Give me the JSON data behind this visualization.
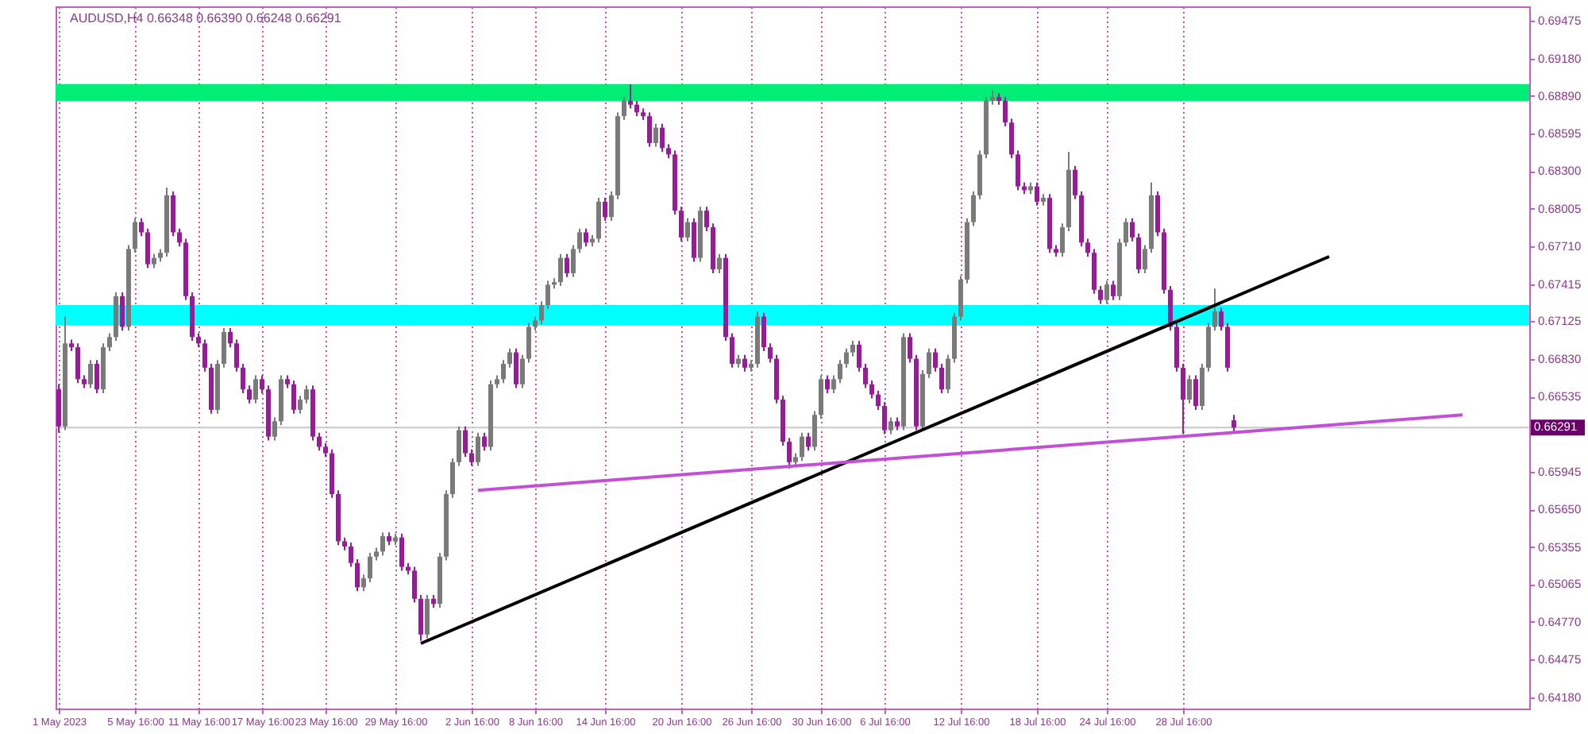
{
  "chart_data": {
    "type": "candlestick",
    "title": "AUDUSD,H4  0.66348 0.66390 0.66248 0.66291",
    "categories": [
      "1 May 2023",
      null,
      null,
      null,
      null,
      null,
      null,
      null,
      null,
      null,
      null,
      null,
      "5 May 16:00",
      null,
      null,
      null,
      null,
      null,
      null,
      null,
      null,
      null,
      "11 May 16:00",
      null,
      null,
      null,
      null,
      null,
      null,
      null,
      null,
      null,
      "17 May 16:00",
      null,
      null,
      null,
      null,
      null,
      null,
      null,
      null,
      null,
      "23 May 16:00",
      null,
      null,
      null,
      null,
      null,
      null,
      null,
      null,
      null,
      null,
      "29 May 16:00",
      null,
      null,
      null,
      null,
      null,
      null,
      null,
      null,
      null,
      null,
      null,
      "2 Jun 16:00",
      null,
      null,
      null,
      null,
      null,
      null,
      null,
      null,
      null,
      "8 Jun 16:00",
      null,
      null,
      null,
      null,
      null,
      null,
      null,
      null,
      null,
      null,
      "14 Jun 16:00",
      null,
      null,
      null,
      null,
      null,
      null,
      null,
      null,
      null,
      null,
      null,
      "20 Jun 16:00",
      null,
      null,
      null,
      null,
      null,
      null,
      null,
      null,
      null,
      null,
      "26 Jun 16:00",
      null,
      null,
      null,
      null,
      null,
      null,
      null,
      null,
      null,
      null,
      "30 Jun 16:00",
      null,
      null,
      null,
      null,
      null,
      null,
      null,
      null,
      null,
      "6 Jul 16:00",
      null,
      null,
      null,
      null,
      null,
      null,
      null,
      null,
      null,
      null,
      null,
      "12 Jul 16:00",
      null,
      null,
      null,
      null,
      null,
      null,
      null,
      null,
      null,
      null,
      null,
      "18 Jul 16:00",
      null,
      null,
      null,
      null,
      null,
      null,
      null,
      null,
      null,
      null,
      "24 Jul 16:00",
      null,
      null,
      null,
      null,
      null,
      null,
      null,
      null,
      null,
      null,
      null,
      "28 Jul 16:00",
      null,
      null,
      null,
      null,
      null,
      null,
      null,
      null,
      null,
      null,
      null,
      null,
      null,
      null,
      null,
      null,
      null,
      null,
      null,
      null,
      null,
      null,
      null,
      null,
      null,
      null,
      null,
      null,
      null,
      null,
      null,
      null,
      null,
      null,
      null,
      null,
      null,
      null,
      null,
      null,
      null,
      null,
      null,
      null,
      null,
      null,
      null,
      null,
      null,
      null,
      null,
      null,
      null,
      null
    ],
    "ohlc": [
      [
        0.6659,
        0.6663,
        0.6625,
        0.663
      ],
      [
        0.663,
        0.6716,
        0.6627,
        0.6695
      ],
      [
        0.6695,
        0.6698,
        0.6689,
        0.6692
      ],
      [
        0.6692,
        0.6695,
        0.6664,
        0.6667
      ],
      [
        0.6667,
        0.667,
        0.666,
        0.6663
      ],
      [
        0.6663,
        0.6682,
        0.666,
        0.6679
      ],
      [
        0.6679,
        0.6682,
        0.6656,
        0.6659
      ],
      [
        0.6659,
        0.6695,
        0.6656,
        0.6692
      ],
      [
        0.6692,
        0.6703,
        0.6689,
        0.67
      ],
      [
        0.67,
        0.6735,
        0.6697,
        0.6732
      ],
      [
        0.6732,
        0.6735,
        0.6705,
        0.6708
      ],
      [
        0.6708,
        0.6772,
        0.6705,
        0.6769
      ],
      [
        0.6769,
        0.6793,
        0.6766,
        0.679
      ],
      [
        0.679,
        0.6793,
        0.6779,
        0.6782
      ],
      [
        0.6782,
        0.6785,
        0.6754,
        0.6757
      ],
      [
        0.6757,
        0.6765,
        0.6754,
        0.6762
      ],
      [
        0.6762,
        0.6769,
        0.6759,
        0.6766
      ],
      [
        0.6766,
        0.6817,
        0.6763,
        0.6811
      ],
      [
        0.6811,
        0.6814,
        0.6779,
        0.6782
      ],
      [
        0.6782,
        0.6785,
        0.6771,
        0.6774
      ],
      [
        0.6774,
        0.6777,
        0.6729,
        0.6732
      ],
      [
        0.6732,
        0.6735,
        0.6697,
        0.67
      ],
      [
        0.67,
        0.6703,
        0.6692,
        0.6695
      ],
      [
        0.6695,
        0.6698,
        0.6673,
        0.6676
      ],
      [
        0.6676,
        0.6679,
        0.664,
        0.6643
      ],
      [
        0.6643,
        0.6682,
        0.664,
        0.6679
      ],
      [
        0.6679,
        0.6707,
        0.6676,
        0.6704
      ],
      [
        0.6704,
        0.6707,
        0.6692,
        0.6695
      ],
      [
        0.6695,
        0.6698,
        0.6673,
        0.6676
      ],
      [
        0.6676,
        0.6679,
        0.6656,
        0.6659
      ],
      [
        0.6659,
        0.6662,
        0.6648,
        0.6651
      ],
      [
        0.6651,
        0.667,
        0.6648,
        0.6667
      ],
      [
        0.6667,
        0.667,
        0.6656,
        0.6659
      ],
      [
        0.6659,
        0.6662,
        0.6619,
        0.6622
      ],
      [
        0.6622,
        0.6637,
        0.6619,
        0.6634
      ],
      [
        0.6634,
        0.667,
        0.6631,
        0.6667
      ],
      [
        0.6667,
        0.667,
        0.666,
        0.6663
      ],
      [
        0.6663,
        0.6666,
        0.664,
        0.6643
      ],
      [
        0.6643,
        0.6654,
        0.664,
        0.6651
      ],
      [
        0.6651,
        0.6662,
        0.6648,
        0.6659
      ],
      [
        0.6659,
        0.6662,
        0.6619,
        0.6622
      ],
      [
        0.6622,
        0.6625,
        0.6611,
        0.6614
      ],
      [
        0.6614,
        0.6617,
        0.6606,
        0.6609
      ],
      [
        0.6609,
        0.6612,
        0.6574,
        0.6577
      ],
      [
        0.6577,
        0.658,
        0.6537,
        0.654
      ],
      [
        0.654,
        0.6543,
        0.6533,
        0.6536
      ],
      [
        0.6536,
        0.6539,
        0.652,
        0.6523
      ],
      [
        0.6523,
        0.6526,
        0.6501,
        0.6504
      ],
      [
        0.6504,
        0.6514,
        0.6501,
        0.6511
      ],
      [
        0.6511,
        0.6531,
        0.6508,
        0.6528
      ],
      [
        0.6528,
        0.6535,
        0.6525,
        0.6532
      ],
      [
        0.6532,
        0.6547,
        0.6529,
        0.6544
      ],
      [
        0.6544,
        0.6547,
        0.6537,
        0.654
      ],
      [
        0.654,
        0.6546,
        0.6537,
        0.6543
      ],
      [
        0.6543,
        0.6546,
        0.6517,
        0.652
      ],
      [
        0.652,
        0.6523,
        0.6514,
        0.6517
      ],
      [
        0.6517,
        0.652,
        0.6492,
        0.6495
      ],
      [
        0.6495,
        0.6498,
        0.6462,
        0.6467
      ],
      [
        0.6467,
        0.6498,
        0.6464,
        0.6495
      ],
      [
        0.6495,
        0.6498,
        0.6488,
        0.6491
      ],
      [
        0.6491,
        0.6531,
        0.6488,
        0.6528
      ],
      [
        0.6528,
        0.658,
        0.6525,
        0.6577
      ],
      [
        0.6577,
        0.6605,
        0.6574,
        0.6602
      ],
      [
        0.6602,
        0.663,
        0.6599,
        0.6627
      ],
      [
        0.6627,
        0.663,
        0.6606,
        0.6609
      ],
      [
        0.6609,
        0.6612,
        0.6599,
        0.6602
      ],
      [
        0.6602,
        0.6625,
        0.6599,
        0.6622
      ],
      [
        0.6622,
        0.6625,
        0.6611,
        0.6614
      ],
      [
        0.6614,
        0.6666,
        0.6611,
        0.6663
      ],
      [
        0.6663,
        0.667,
        0.666,
        0.6667
      ],
      [
        0.6667,
        0.6682,
        0.6664,
        0.6679
      ],
      [
        0.6679,
        0.6691,
        0.6676,
        0.6688
      ],
      [
        0.6688,
        0.6691,
        0.666,
        0.6663
      ],
      [
        0.6663,
        0.6686,
        0.666,
        0.6683
      ],
      [
        0.6683,
        0.6711,
        0.668,
        0.6708
      ],
      [
        0.6708,
        0.6716,
        0.6705,
        0.6713
      ],
      [
        0.6713,
        0.6728,
        0.671,
        0.6725
      ],
      [
        0.6725,
        0.6744,
        0.6722,
        0.6741
      ],
      [
        0.6741,
        0.6746,
        0.6738,
        0.6743
      ],
      [
        0.6743,
        0.6765,
        0.674,
        0.6762
      ],
      [
        0.6762,
        0.6765,
        0.6747,
        0.675
      ],
      [
        0.675,
        0.6772,
        0.6747,
        0.6769
      ],
      [
        0.6769,
        0.6785,
        0.6766,
        0.6782
      ],
      [
        0.6782,
        0.6785,
        0.6771,
        0.6774
      ],
      [
        0.6774,
        0.678,
        0.6771,
        0.6777
      ],
      [
        0.6777,
        0.6809,
        0.6774,
        0.6806
      ],
      [
        0.6806,
        0.6809,
        0.6791,
        0.6794
      ],
      [
        0.6794,
        0.6814,
        0.6791,
        0.6811
      ],
      [
        0.6811,
        0.6876,
        0.6808,
        0.6873
      ],
      [
        0.6873,
        0.6888,
        0.687,
        0.6885
      ],
      [
        0.6885,
        0.6898,
        0.6879,
        0.6882
      ],
      [
        0.6882,
        0.6885,
        0.6873,
        0.6876
      ],
      [
        0.6876,
        0.6879,
        0.687,
        0.6873
      ],
      [
        0.6873,
        0.6876,
        0.6849,
        0.6852
      ],
      [
        0.6852,
        0.6867,
        0.6849,
        0.6864
      ],
      [
        0.6864,
        0.6867,
        0.6845,
        0.6848
      ],
      [
        0.6848,
        0.6851,
        0.684,
        0.6843
      ],
      [
        0.6843,
        0.6846,
        0.6796,
        0.6799
      ],
      [
        0.6799,
        0.6802,
        0.6775,
        0.6778
      ],
      [
        0.6778,
        0.6793,
        0.6775,
        0.679
      ],
      [
        0.679,
        0.6793,
        0.6759,
        0.6762
      ],
      [
        0.6762,
        0.6802,
        0.6759,
        0.6799
      ],
      [
        0.6799,
        0.6802,
        0.6783,
        0.6786
      ],
      [
        0.6786,
        0.6789,
        0.675,
        0.6753
      ],
      [
        0.6753,
        0.6765,
        0.675,
        0.6762
      ],
      [
        0.6762,
        0.6765,
        0.6697,
        0.67
      ],
      [
        0.67,
        0.6703,
        0.6676,
        0.6679
      ],
      [
        0.6679,
        0.6686,
        0.6676,
        0.6683
      ],
      [
        0.6683,
        0.6686,
        0.6673,
        0.6676
      ],
      [
        0.6676,
        0.6682,
        0.6673,
        0.6679
      ],
      [
        0.6679,
        0.672,
        0.6676,
        0.6716
      ],
      [
        0.6716,
        0.6719,
        0.6689,
        0.6692
      ],
      [
        0.6692,
        0.6695,
        0.668,
        0.6683
      ],
      [
        0.6683,
        0.6686,
        0.6648,
        0.6651
      ],
      [
        0.6651,
        0.6654,
        0.6615,
        0.6618
      ],
      [
        0.6618,
        0.6621,
        0.6597,
        0.6602
      ],
      [
        0.6602,
        0.6609,
        0.6599,
        0.6606
      ],
      [
        0.6606,
        0.6625,
        0.6603,
        0.6622
      ],
      [
        0.6622,
        0.6625,
        0.6611,
        0.6614
      ],
      [
        0.6614,
        0.6642,
        0.6611,
        0.6639
      ],
      [
        0.6639,
        0.667,
        0.6636,
        0.6667
      ],
      [
        0.6667,
        0.667,
        0.6656,
        0.6659
      ],
      [
        0.6659,
        0.667,
        0.6656,
        0.6667
      ],
      [
        0.6667,
        0.6682,
        0.6664,
        0.6679
      ],
      [
        0.6679,
        0.6691,
        0.6676,
        0.6688
      ],
      [
        0.6688,
        0.6697,
        0.6685,
        0.6694
      ],
      [
        0.6694,
        0.6697,
        0.6673,
        0.6676
      ],
      [
        0.6676,
        0.6679,
        0.666,
        0.6663
      ],
      [
        0.6663,
        0.6666,
        0.6652,
        0.6655
      ],
      [
        0.6655,
        0.6658,
        0.6643,
        0.6646
      ],
      [
        0.6646,
        0.6649,
        0.6624,
        0.6627
      ],
      [
        0.6627,
        0.6637,
        0.6624,
        0.6634
      ],
      [
        0.6634,
        0.6637,
        0.6627,
        0.663
      ],
      [
        0.663,
        0.6703,
        0.6627,
        0.67
      ],
      [
        0.67,
        0.6703,
        0.668,
        0.6683
      ],
      [
        0.6683,
        0.6686,
        0.6627,
        0.663
      ],
      [
        0.663,
        0.6674,
        0.6627,
        0.6671
      ],
      [
        0.6671,
        0.6691,
        0.6668,
        0.6688
      ],
      [
        0.6688,
        0.6691,
        0.6673,
        0.6676
      ],
      [
        0.6676,
        0.6679,
        0.6656,
        0.6659
      ],
      [
        0.6659,
        0.6686,
        0.6656,
        0.6683
      ],
      [
        0.6683,
        0.6719,
        0.668,
        0.6716
      ],
      [
        0.6716,
        0.6748,
        0.6713,
        0.6745
      ],
      [
        0.6745,
        0.6793,
        0.6742,
        0.679
      ],
      [
        0.679,
        0.6814,
        0.6787,
        0.6811
      ],
      [
        0.6811,
        0.6846,
        0.6808,
        0.6843
      ],
      [
        0.6843,
        0.6888,
        0.684,
        0.6885
      ],
      [
        0.6885,
        0.6893,
        0.6882,
        0.6888
      ],
      [
        0.6888,
        0.6891,
        0.6882,
        0.6885
      ],
      [
        0.6885,
        0.6888,
        0.6865,
        0.6868
      ],
      [
        0.6868,
        0.6871,
        0.684,
        0.6843
      ],
      [
        0.6843,
        0.6846,
        0.6815,
        0.6818
      ],
      [
        0.6818,
        0.6821,
        0.6812,
        0.6815
      ],
      [
        0.6815,
        0.6821,
        0.6812,
        0.6818
      ],
      [
        0.6818,
        0.6821,
        0.6803,
        0.6806
      ],
      [
        0.6806,
        0.6812,
        0.6803,
        0.6809
      ],
      [
        0.6809,
        0.6812,
        0.6766,
        0.6769
      ],
      [
        0.6769,
        0.6772,
        0.6763,
        0.6766
      ],
      [
        0.6766,
        0.6789,
        0.6763,
        0.6786
      ],
      [
        0.6786,
        0.6845,
        0.6783,
        0.6831
      ],
      [
        0.6831,
        0.6834,
        0.6808,
        0.6811
      ],
      [
        0.6811,
        0.6814,
        0.6771,
        0.6774
      ],
      [
        0.6774,
        0.6777,
        0.6763,
        0.6766
      ],
      [
        0.6766,
        0.6769,
        0.6734,
        0.6737
      ],
      [
        0.6737,
        0.674,
        0.6726,
        0.6729
      ],
      [
        0.6729,
        0.6744,
        0.6726,
        0.6741
      ],
      [
        0.6741,
        0.6744,
        0.6729,
        0.6732
      ],
      [
        0.6732,
        0.6777,
        0.6729,
        0.6774
      ],
      [
        0.6774,
        0.6793,
        0.6771,
        0.679
      ],
      [
        0.679,
        0.6793,
        0.6775,
        0.6778
      ],
      [
        0.6778,
        0.6781,
        0.675,
        0.6753
      ],
      [
        0.6753,
        0.6772,
        0.675,
        0.6769
      ],
      [
        0.6769,
        0.6821,
        0.6766,
        0.6811
      ],
      [
        0.6811,
        0.6814,
        0.6779,
        0.6782
      ],
      [
        0.6782,
        0.6785,
        0.6734,
        0.6737
      ],
      [
        0.6737,
        0.674,
        0.6705,
        0.6708
      ],
      [
        0.6708,
        0.6711,
        0.6673,
        0.6676
      ],
      [
        0.6676,
        0.6679,
        0.6624,
        0.6651
      ],
      [
        0.6651,
        0.667,
        0.6648,
        0.6667
      ],
      [
        0.6667,
        0.667,
        0.6643,
        0.6646
      ],
      [
        0.6646,
        0.6679,
        0.6643,
        0.6676
      ],
      [
        0.6676,
        0.6711,
        0.6673,
        0.6708
      ],
      [
        0.6708,
        0.6738,
        0.6705,
        0.672
      ],
      [
        0.672,
        0.6723,
        0.6705,
        0.6708
      ],
      [
        0.6708,
        0.6711,
        0.6673,
        0.6676
      ],
      [
        0.66348,
        0.6639,
        0.66248,
        0.66291
      ],
      null,
      null,
      null,
      null,
      null,
      null,
      null,
      null,
      null,
      null,
      null,
      null,
      null,
      null,
      null,
      null,
      null,
      null,
      null,
      null,
      null,
      null,
      null,
      null,
      null,
      null,
      null,
      null,
      null,
      null,
      null,
      null,
      null,
      null,
      null,
      null,
      null,
      null,
      null,
      null,
      null,
      null,
      null,
      null,
      null,
      null
    ],
    "colors": [
      "#9b1a9b",
      "#7a7a7a",
      "#9b1a9b",
      "#9b1a9b",
      "#9b1a9b",
      "#7a7a7a",
      "#9b1a9b",
      "#7a7a7a",
      "#7a7a7a",
      "#7a7a7a",
      "#9b1a9b",
      "#7a7a7a",
      "#7a7a7a",
      "#9b1a9b",
      "#9b1a9b",
      "#7a7a7a",
      "#7a7a7a",
      "#7a7a7a",
      "#9b1a9b",
      "#9b1a9b",
      "#9b1a9b",
      "#9b1a9b",
      "#9b1a9b",
      "#9b1a9b",
      "#9b1a9b",
      "#7a7a7a",
      "#7a7a7a",
      "#9b1a9b",
      "#9b1a9b",
      "#9b1a9b",
      "#9b1a9b",
      "#7a7a7a",
      "#9b1a9b",
      "#9b1a9b",
      "#7a7a7a",
      "#7a7a7a",
      "#9b1a9b",
      "#9b1a9b",
      "#7a7a7a",
      "#7a7a7a",
      "#9b1a9b",
      "#9b1a9b",
      "#9b1a9b",
      "#9b1a9b",
      "#9b1a9b",
      "#9b1a9b",
      "#9b1a9b",
      "#9b1a9b",
      "#7a7a7a",
      "#7a7a7a",
      "#7a7a7a",
      "#7a7a7a",
      "#9b1a9b",
      "#7a7a7a",
      "#9b1a9b",
      "#9b1a9b",
      "#9b1a9b",
      "#9b1a9b",
      "#7a7a7a",
      "#9b1a9b",
      "#7a7a7a",
      "#7a7a7a",
      "#7a7a7a",
      "#7a7a7a",
      "#9b1a9b",
      "#9b1a9b",
      "#7a7a7a",
      "#9b1a9b",
      "#7a7a7a",
      "#7a7a7a",
      "#7a7a7a",
      "#7a7a7a",
      "#9b1a9b",
      "#7a7a7a",
      "#7a7a7a",
      "#7a7a7a",
      "#7a7a7a",
      "#7a7a7a",
      "#7a7a7a",
      "#7a7a7a",
      "#9b1a9b",
      "#7a7a7a",
      "#7a7a7a",
      "#9b1a9b",
      "#7a7a7a",
      "#7a7a7a",
      "#9b1a9b",
      "#7a7a7a",
      "#7a7a7a",
      "#7a7a7a",
      "#9b1a9b",
      "#9b1a9b",
      "#9b1a9b",
      "#9b1a9b",
      "#7a7a7a",
      "#9b1a9b",
      "#9b1a9b",
      "#9b1a9b",
      "#9b1a9b",
      "#7a7a7a",
      "#9b1a9b",
      "#7a7a7a",
      "#9b1a9b",
      "#9b1a9b",
      "#7a7a7a",
      "#9b1a9b",
      "#9b1a9b",
      "#7a7a7a",
      "#9b1a9b",
      "#7a7a7a",
      "#7a7a7a",
      "#9b1a9b",
      "#9b1a9b",
      "#9b1a9b",
      "#9b1a9b",
      "#9b1a9b",
      "#7a7a7a",
      "#7a7a7a",
      "#9b1a9b",
      "#7a7a7a",
      "#7a7a7a",
      "#9b1a9b",
      "#7a7a7a",
      "#7a7a7a",
      "#7a7a7a",
      "#7a7a7a",
      "#9b1a9b",
      "#9b1a9b",
      "#9b1a9b",
      "#9b1a9b",
      "#9b1a9b",
      "#7a7a7a",
      "#9b1a9b",
      "#7a7a7a",
      "#9b1a9b",
      "#9b1a9b",
      "#7a7a7a",
      "#7a7a7a",
      "#9b1a9b",
      "#9b1a9b",
      "#7a7a7a",
      "#7a7a7a",
      "#7a7a7a",
      "#7a7a7a",
      "#7a7a7a",
      "#7a7a7a",
      "#7a7a7a",
      "#7a7a7a",
      "#9b1a9b",
      "#9b1a9b",
      "#9b1a9b",
      "#9b1a9b",
      "#9b1a9b",
      "#7a7a7a",
      "#9b1a9b",
      "#7a7a7a",
      "#9b1a9b",
      "#9b1a9b",
      "#7a7a7a",
      "#7a7a7a",
      "#9b1a9b",
      "#9b1a9b",
      "#9b1a9b",
      "#9b1a9b",
      "#9b1a9b",
      "#7a7a7a",
      "#9b1a9b",
      "#7a7a7a",
      "#7a7a7a",
      "#9b1a9b",
      "#9b1a9b",
      "#7a7a7a",
      "#7a7a7a",
      "#9b1a9b",
      "#9b1a9b",
      "#9b1a9b",
      "#9b1a9b",
      "#9b1a9b",
      "#7a7a7a",
      "#9b1a9b",
      "#7a7a7a",
      "#7a7a7a",
      "#7a7a7a",
      "#9b1a9b",
      "#9b1a9b",
      "#9b1a9b",
      null,
      null,
      null,
      null,
      null,
      null,
      null,
      null,
      null,
      null,
      null,
      null,
      null,
      null,
      null,
      null,
      null,
      null,
      null,
      null,
      null,
      null,
      null,
      null,
      null,
      null,
      null,
      null,
      null,
      null,
      null,
      null,
      null,
      null,
      null,
      null,
      null,
      null,
      null,
      null,
      null,
      null,
      null,
      null,
      null,
      null
    ],
    "series": [
      {
        "type": "line",
        "color": "#000000",
        "values": [
          null,
          null,
          null,
          null,
          null,
          null,
          null,
          null,
          null,
          null,
          null,
          null,
          null,
          null,
          null,
          null,
          null,
          null,
          null,
          null,
          null,
          null,
          null,
          null,
          null,
          null,
          null,
          null,
          null,
          null,
          null,
          null,
          null,
          null,
          null,
          null,
          null,
          null,
          null,
          null,
          null,
          null,
          null,
          null,
          null,
          null,
          null,
          null,
          null,
          null,
          null,
          null,
          null,
          null,
          null,
          null,
          null,
          0.646,
          null,
          null,
          null,
          null,
          null,
          null,
          null,
          null,
          null,
          null,
          null,
          null,
          null,
          null,
          null,
          null,
          null,
          null,
          null,
          null,
          null,
          null,
          null,
          null,
          null,
          null,
          null,
          null,
          null,
          null,
          null,
          null,
          null,
          null,
          null,
          null,
          null,
          null,
          null,
          null,
          null,
          null,
          null,
          null,
          null,
          null,
          null,
          null,
          null,
          null,
          null,
          null,
          null,
          null,
          null,
          null,
          null,
          null,
          null,
          null,
          null,
          null,
          null,
          null,
          null,
          null,
          null,
          null,
          null,
          null,
          null,
          null,
          null,
          null,
          null,
          null,
          null,
          null,
          null,
          null,
          null,
          null,
          null,
          null,
          null,
          null,
          null,
          null,
          null,
          null,
          null,
          null,
          null,
          null,
          null,
          null,
          null,
          null,
          null,
          null,
          null,
          null,
          null,
          null,
          null,
          null,
          null,
          null,
          null,
          null,
          null,
          null,
          null,
          null,
          null,
          null,
          null,
          null,
          null,
          null,
          null,
          null,
          null,
          null,
          null,
          null,
          null,
          null,
          null,
          null,
          null,
          null,
          null,
          null,
          null,
          null,
          null,
          null,
          null,
          null,
          null,
          null,
          0.6763,
          null,
          null,
          null,
          null,
          null,
          null,
          null,
          null,
          null,
          null,
          null,
          null,
          null,
          null,
          null,
          null,
          null,
          null,
          null,
          null,
          null,
          null,
          null,
          null,
          null,
          null,
          null,
          null,
          null,
          null,
          null
        ]
      },
      {
        "type": "line",
        "color": "#c24fd6",
        "values": [
          null,
          null,
          null,
          null,
          null,
          null,
          null,
          null,
          null,
          null,
          null,
          null,
          null,
          null,
          null,
          null,
          null,
          null,
          null,
          null,
          null,
          null,
          null,
          null,
          null,
          null,
          null,
          null,
          null,
          null,
          null,
          null,
          null,
          null,
          null,
          null,
          null,
          null,
          null,
          null,
          null,
          null,
          null,
          null,
          null,
          null,
          null,
          null,
          null,
          null,
          null,
          null,
          null,
          null,
          null,
          null,
          null,
          null,
          null,
          null,
          null,
          null,
          null,
          null,
          null,
          null,
          0.658,
          null,
          null,
          null,
          null,
          null,
          null,
          null,
          null,
          null,
          null,
          null,
          null,
          null,
          null,
          null,
          null,
          null,
          null,
          null,
          null,
          null,
          null,
          null,
          null,
          null,
          null,
          null,
          null,
          null,
          null,
          null,
          null,
          null,
          null,
          null,
          null,
          null,
          null,
          null,
          null,
          null,
          null,
          null,
          null,
          null,
          null,
          null,
          null,
          null,
          null,
          null,
          null,
          null,
          null,
          null,
          null,
          null,
          null,
          null,
          null,
          null,
          null,
          null,
          null,
          null,
          null,
          null,
          null,
          null,
          null,
          null,
          null,
          null,
          null,
          null,
          null,
          null,
          null,
          null,
          null,
          null,
          null,
          null,
          null,
          null,
          null,
          null,
          null,
          null,
          null,
          null,
          null,
          null,
          null,
          null,
          null,
          null,
          null,
          null,
          null,
          null,
          null,
          null,
          null,
          null,
          null,
          null,
          null,
          null,
          null,
          null,
          null,
          null,
          null,
          null,
          null,
          null,
          null,
          null,
          null,
          null,
          null,
          null,
          null,
          null,
          null,
          null,
          null,
          null,
          null,
          null,
          null,
          null,
          null,
          null,
          null,
          null,
          null,
          null,
          null,
          null,
          null,
          null,
          null,
          null,
          null,
          null,
          null,
          null,
          null,
          null,
          null,
          null,
          null,
          0.6639,
          null,
          null,
          null,
          null,
          null,
          null,
          null,
          null,
          null,
          null
        ]
      }
    ],
    "ylim": [
      0.6409,
      0.6959
    ],
    "yticks": [
      0.69475,
      {
        "value": 0.6918,
        "label": "0.69180"
      },
      {
        "value": 0.6889,
        "label": "0.68890"
      },
      0.68595,
      {
        "value": 0.683,
        "label": "0.68300"
      },
      0.68005,
      {
        "value": 0.6771,
        "label": "0.67710"
      },
      0.67415,
      0.67125,
      {
        "value": 0.6683,
        "label": "0.66830"
      },
      0.66535,
      0.65945,
      {
        "value": 0.6565,
        "label": "0.65650"
      },
      0.65355,
      0.65065,
      {
        "value": 0.6477,
        "label": "0.64770"
      },
      0.64475,
      {
        "value": 0.6418,
        "label": "0.64180"
      }
    ],
    "grid": "x",
    "ref_lines": [
      {
        "axis": "y",
        "value": 0.66291,
        "label": "0.66291",
        "color": "#c8c8c8",
        "line_style": "solid"
      }
    ],
    "bands": [
      {
        "axis": "y",
        "from": 0.6885,
        "to": 0.6898,
        "color": "#00ee76"
      },
      {
        "axis": "y",
        "from": 0.6709,
        "to": 0.6725,
        "color": "#00ffff"
      }
    ]
  }
}
